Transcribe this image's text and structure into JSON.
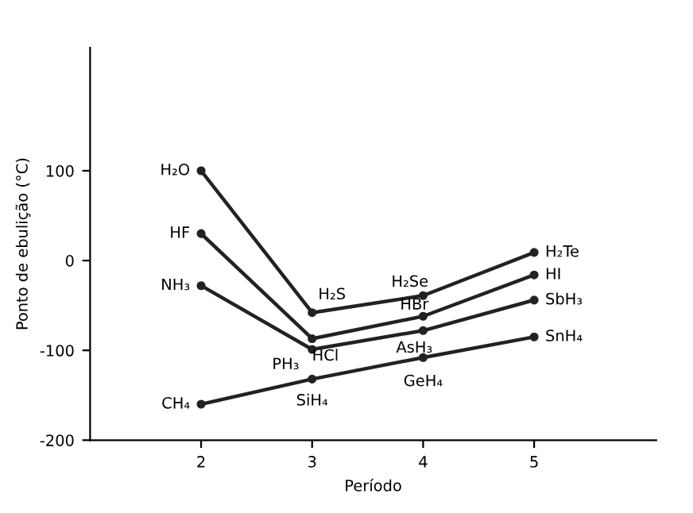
{
  "chart_data": {
    "type": "line",
    "xlabel": "Período",
    "ylabel": "Ponto de ebulição (°C)",
    "x": [
      2,
      3,
      4,
      5
    ],
    "series": [
      {
        "color": "#222222",
        "values": [
          100,
          -58,
          -39,
          9
        ]
      },
      {
        "color": "#222222",
        "values": [
          30,
          -87,
          -62,
          -16
        ]
      },
      {
        "color": "#222222",
        "values": [
          -28,
          -99,
          -78,
          -44
        ]
      },
      {
        "color": "#222222",
        "values": [
          -160,
          -132,
          -108,
          -85
        ]
      }
    ],
    "annotations": [
      {
        "text": "H₂O",
        "x": 2,
        "y": 100
      },
      {
        "text": "H₂S",
        "x": 3,
        "y": -58
      },
      {
        "text": "H₂Se",
        "x": 4,
        "y": -39
      },
      {
        "text": "H₂Te",
        "x": 5,
        "y": 9
      },
      {
        "text": "HF",
        "x": 2,
        "y": 30
      },
      {
        "text": "HCl",
        "x": 3,
        "y": -87
      },
      {
        "text": "HBr",
        "x": 4,
        "y": -62
      },
      {
        "text": "HI",
        "x": 5,
        "y": -16
      },
      {
        "text": "NH₃",
        "x": 2,
        "y": -28
      },
      {
        "text": "PH₃",
        "x": 3,
        "y": -99
      },
      {
        "text": "AsH₃",
        "x": 4,
        "y": -78
      },
      {
        "text": "SbH₃",
        "x": 5,
        "y": -44
      },
      {
        "text": "CH₄",
        "x": 2,
        "y": -160
      },
      {
        "text": "SiH₄",
        "x": 3,
        "y": -132
      },
      {
        "text": "GeH₄",
        "x": 4,
        "y": -108
      },
      {
        "text": "SnH₄",
        "x": 5,
        "y": -85
      }
    ],
    "xlim": [
      1,
      6.1
    ],
    "ylim": [
      -200,
      237
    ],
    "xticks": [
      2,
      3,
      4,
      5
    ],
    "yticks": [
      -200,
      -100,
      0,
      100
    ],
    "marker": "circle",
    "line_style": "solid",
    "grid": false,
    "legend": false
  }
}
